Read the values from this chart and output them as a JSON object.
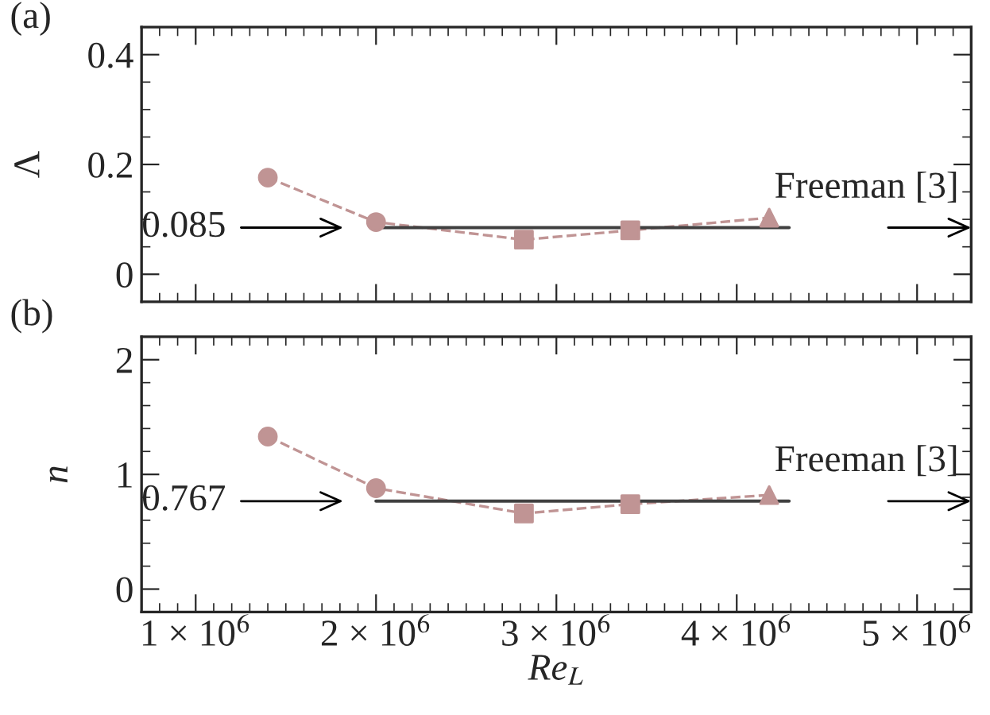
{
  "chart_data": [
    {
      "type": "line",
      "title": "(a)",
      "ylabel": "Λ",
      "xlim": [
        700000,
        5300000
      ],
      "ylim": [
        -0.05,
        0.45
      ],
      "xticks": [
        1000000,
        2000000,
        3000000,
        4000000,
        5000000
      ],
      "yticks": [
        0,
        0.2,
        0.4
      ],
      "tick_labels": "y",
      "series": [
        {
          "color": "#c09494",
          "line_style": "dashed",
          "marker": "none",
          "x": [
            1400000,
            2000000,
            2820000,
            3410000,
            4180000
          ],
          "values": [
            0.176,
            0.095,
            0.063,
            0.08,
            0.103
          ]
        },
        {
          "color": "#404040",
          "line_style": "solid",
          "marker": "none",
          "x": [
            2000000,
            4290000
          ],
          "values": [
            0.085,
            0.085
          ]
        },
        {
          "type": "scatter",
          "color": "#c09494",
          "marker": "circle",
          "x": [
            1400000
          ],
          "values": [
            0.176
          ]
        },
        {
          "type": "scatter",
          "color": "#c09494",
          "marker": "circle",
          "x": [
            2000000
          ],
          "values": [
            0.095
          ]
        },
        {
          "type": "scatter",
          "color": "#c09494",
          "marker": "square",
          "x": [
            2820000
          ],
          "values": [
            0.063
          ]
        },
        {
          "type": "scatter",
          "color": "#c09494",
          "marker": "square",
          "x": [
            3410000
          ],
          "values": [
            0.08
          ]
        },
        {
          "type": "scatter",
          "color": "#c09494",
          "marker": "triangle",
          "x": [
            4180000
          ],
          "values": [
            0.103
          ]
        }
      ],
      "annotations": [
        "0.085",
        "Freeman [3]"
      ]
    },
    {
      "type": "line",
      "title": "(b)",
      "ylabel": "n",
      "xlabel": "Re$_{L}$",
      "xlim": [
        700000,
        5300000
      ],
      "ylim": [
        -0.2,
        2.2
      ],
      "xticks": [
        {
          "value": 1000000,
          "label": "1 × 10$^{6}$"
        },
        {
          "value": 2000000,
          "label": "2 × 10$^{6}$"
        },
        {
          "value": 3000000,
          "label": "3 × 10$^{6}$"
        },
        {
          "value": 4000000,
          "label": "4 × 10$^{6}$"
        },
        {
          "value": 5000000,
          "label": "5 × 10$^{6}$"
        }
      ],
      "yticks": [
        0,
        1,
        2
      ],
      "series": [
        {
          "color": "#c09494",
          "line_style": "dashed",
          "marker": "none",
          "x": [
            1400000,
            2000000,
            2820000,
            3410000,
            4180000
          ],
          "values": [
            1.33,
            0.88,
            0.66,
            0.74,
            0.82
          ]
        },
        {
          "color": "#404040",
          "line_style": "solid",
          "marker": "none",
          "x": [
            2000000,
            4290000
          ],
          "values": [
            0.767,
            0.767
          ]
        },
        {
          "type": "scatter",
          "color": "#c09494",
          "marker": "circle",
          "x": [
            1400000
          ],
          "values": [
            1.33
          ]
        },
        {
          "type": "scatter",
          "color": "#c09494",
          "marker": "circle",
          "x": [
            2000000
          ],
          "values": [
            0.88
          ]
        },
        {
          "type": "scatter",
          "color": "#c09494",
          "marker": "square",
          "x": [
            2820000
          ],
          "values": [
            0.66
          ]
        },
        {
          "type": "scatter",
          "color": "#c09494",
          "marker": "square",
          "x": [
            3410000
          ],
          "values": [
            0.74
          ]
        },
        {
          "type": "scatter",
          "color": "#c09494",
          "marker": "triangle",
          "x": [
            4180000
          ],
          "values": [
            0.82
          ]
        }
      ],
      "annotations": [
        "0.767",
        "Freeman [3]"
      ]
    }
  ]
}
